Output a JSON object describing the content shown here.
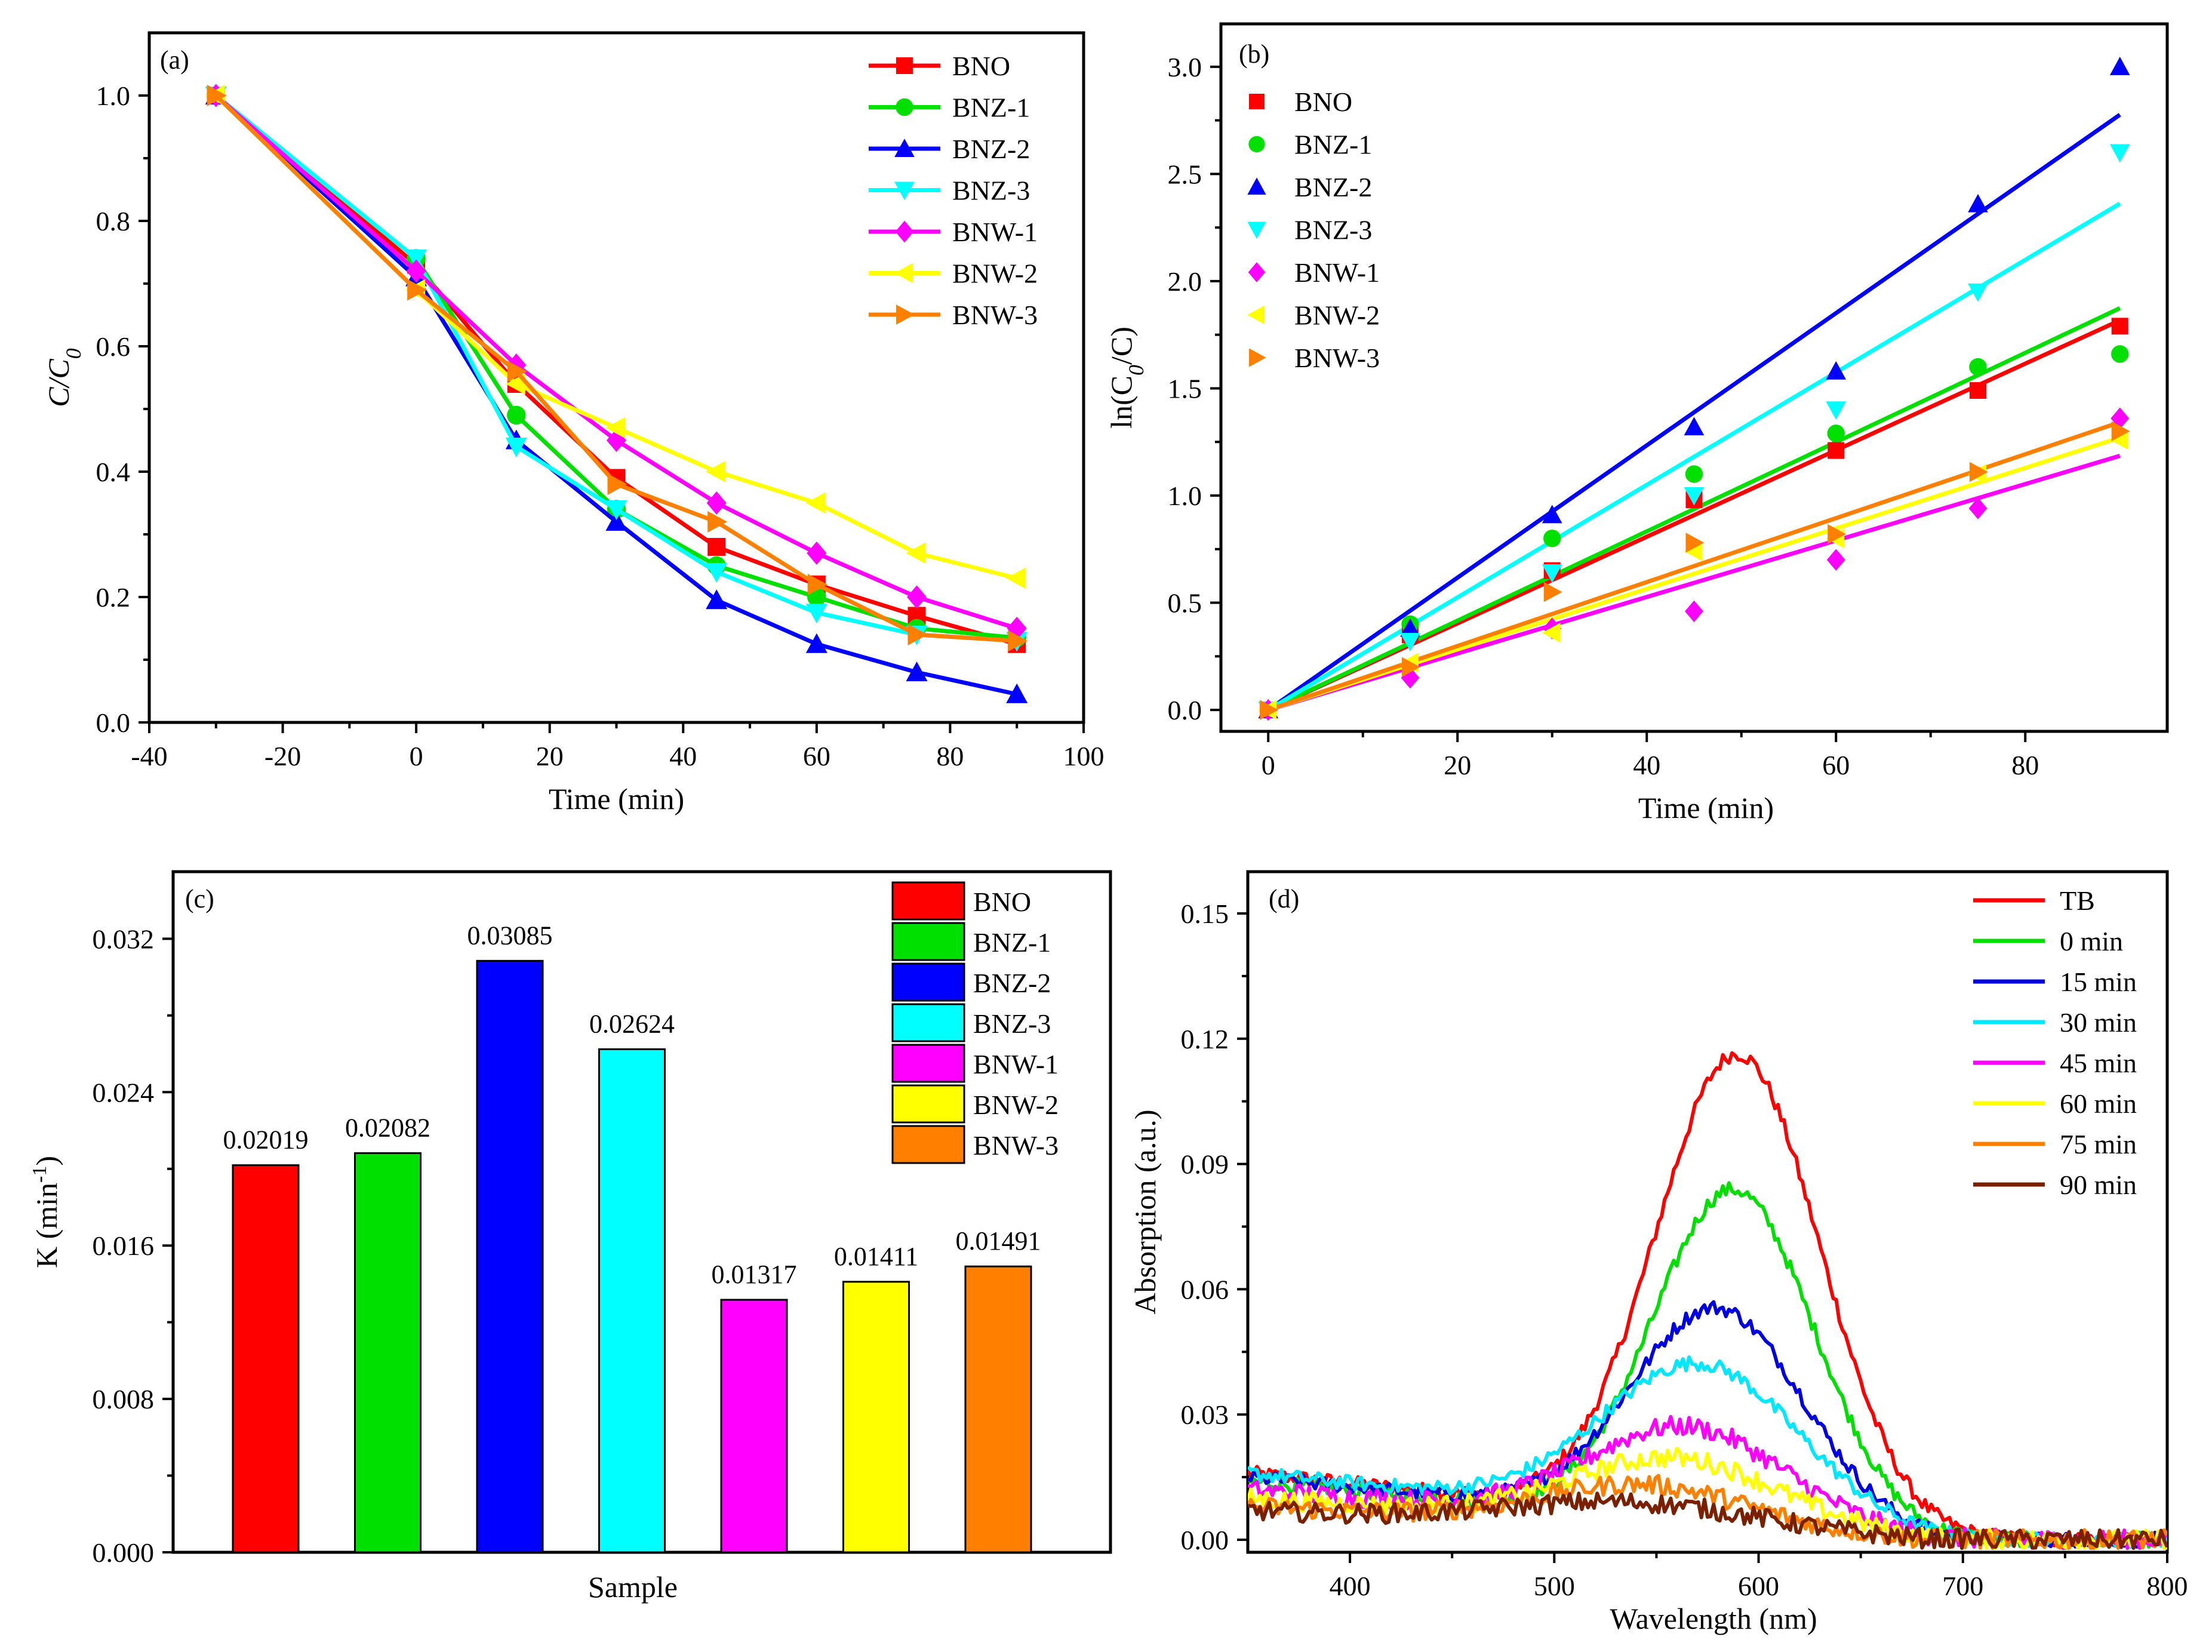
{
  "figure_colors": {
    "BNO": "#ff0000",
    "BNZ-1": "#00e000",
    "BNZ-2": "#0000ff",
    "BNZ-3": "#00ffff",
    "BNW-1": "#ff00ff",
    "BNW-2": "#ffff00",
    "BNW-3": "#ff8000"
  },
  "chart_data": [
    {
      "id": "a",
      "type": "line",
      "panel_label": "(a)",
      "title": "",
      "xlabel": "Time (min)",
      "ylabel": "C/C0",
      "ylabel_main": "C/C",
      "ylabel_sub": "0",
      "xlim": [
        -40,
        100
      ],
      "ylim": [
        0,
        1.1
      ],
      "x_ticks": [
        -40,
        -20,
        0,
        20,
        40,
        60,
        80,
        100
      ],
      "y_ticks": [
        0.0,
        0.2,
        0.4,
        0.6,
        0.8,
        1.0
      ],
      "x_tick_labels": [
        "-40",
        "-20",
        "0",
        "20",
        "40",
        "60",
        "80",
        "100"
      ],
      "y_tick_labels": [
        "0.0",
        "0.2",
        "0.4",
        "0.6",
        "0.8",
        "1.0"
      ],
      "legend_position": "top-right",
      "x": [
        -30,
        0,
        15,
        30,
        45,
        60,
        75,
        90
      ],
      "series": [
        {
          "name": "BNO",
          "marker": "square",
          "values": [
            1.0,
            0.73,
            0.54,
            0.39,
            0.28,
            0.22,
            0.17,
            0.125
          ]
        },
        {
          "name": "BNZ-1",
          "marker": "circle",
          "values": [
            1.0,
            0.74,
            0.49,
            0.34,
            0.25,
            0.2,
            0.15,
            0.135
          ]
        },
        {
          "name": "BNZ-2",
          "marker": "triangle-up",
          "values": [
            1.0,
            0.71,
            0.45,
            0.32,
            0.195,
            0.125,
            0.08,
            0.045
          ]
        },
        {
          "name": "BNZ-3",
          "marker": "triangle-down",
          "values": [
            1.0,
            0.74,
            0.44,
            0.34,
            0.24,
            0.175,
            0.14,
            0.13
          ]
        },
        {
          "name": "BNW-1",
          "marker": "diamond",
          "values": [
            1.0,
            0.72,
            0.57,
            0.45,
            0.35,
            0.27,
            0.2,
            0.15
          ]
        },
        {
          "name": "BNW-2",
          "marker": "triangle-left",
          "values": [
            1.0,
            0.69,
            0.54,
            0.47,
            0.4,
            0.35,
            0.27,
            0.23
          ]
        },
        {
          "name": "BNW-3",
          "marker": "triangle-right",
          "values": [
            1.0,
            0.69,
            0.56,
            0.38,
            0.32,
            0.22,
            0.14,
            0.13
          ]
        }
      ]
    },
    {
      "id": "b",
      "type": "scatter",
      "panel_label": "(b)",
      "title": "",
      "xlabel": "Time (min)",
      "ylabel": "ln(C0/C)",
      "ylabel_main_pre": "ln(C",
      "ylabel_sub": "0",
      "ylabel_main_post": "/C)",
      "xlim": [
        -5,
        95
      ],
      "ylim": [
        -0.1,
        3.2
      ],
      "x_ticks": [
        0,
        20,
        40,
        60,
        80
      ],
      "y_ticks": [
        0.0,
        0.5,
        1.0,
        1.5,
        2.0,
        2.5,
        3.0
      ],
      "x_tick_labels": [
        "0",
        "20",
        "40",
        "60",
        "80"
      ],
      "y_tick_labels": [
        "0.0",
        "0.5",
        "1.0",
        "1.5",
        "2.0",
        "2.5",
        "3.0"
      ],
      "legend_position": "top-left",
      "x": [
        0,
        15,
        30,
        45,
        60,
        75,
        90
      ],
      "series": [
        {
          "name": "BNO",
          "marker": "square",
          "values": [
            0.0,
            0.35,
            0.65,
            0.98,
            1.21,
            1.49,
            1.79
          ],
          "fit_slope": 0.02019
        },
        {
          "name": "BNZ-1",
          "marker": "circle",
          "values": [
            0.0,
            0.4,
            0.8,
            1.1,
            1.29,
            1.6,
            1.66
          ],
          "fit_slope": 0.02082
        },
        {
          "name": "BNZ-2",
          "marker": "triangle-up",
          "values": [
            0.0,
            0.38,
            0.91,
            1.32,
            1.58,
            2.36,
            3.0
          ],
          "fit_slope": 0.03085
        },
        {
          "name": "BNZ-3",
          "marker": "triangle-down",
          "values": [
            0.0,
            0.32,
            0.64,
            1.0,
            1.4,
            1.95,
            2.6
          ],
          "fit_slope": 0.02624
        },
        {
          "name": "BNW-1",
          "marker": "diamond",
          "values": [
            0.0,
            0.15,
            0.38,
            0.46,
            0.7,
            0.94,
            1.36
          ],
          "fit_slope": 0.01317
        },
        {
          "name": "BNW-2",
          "marker": "triangle-left",
          "values": [
            0.0,
            0.22,
            0.36,
            0.74,
            0.8,
            1.1,
            1.26
          ],
          "fit_slope": 0.01411
        },
        {
          "name": "BNW-3",
          "marker": "triangle-right",
          "values": [
            0.0,
            0.2,
            0.55,
            0.78,
            0.82,
            1.11,
            1.3
          ],
          "fit_slope": 0.01491
        }
      ]
    },
    {
      "id": "c",
      "type": "bar",
      "panel_label": "(c)",
      "title": "",
      "xlabel": "Sample",
      "ylabel": "K (min-1)",
      "ylabel_main": "K (min",
      "ylabel_sup": "-1",
      "ylabel_post": ")",
      "ylim": [
        0,
        0.0355
      ],
      "y_ticks": [
        0.0,
        0.008,
        0.016,
        0.024,
        0.032
      ],
      "y_tick_labels": [
        "0.000",
        "0.008",
        "0.016",
        "0.024",
        "0.032"
      ],
      "legend_position": "top-right",
      "categories": [
        "BNO",
        "BNZ-1",
        "BNZ-2",
        "BNZ-3",
        "BNW-1",
        "BNW-2",
        "BNW-3"
      ],
      "values": [
        0.02019,
        0.02082,
        0.03085,
        0.02624,
        0.01317,
        0.01411,
        0.01491
      ],
      "data_labels": [
        "0.02019",
        "0.02082",
        "0.03085",
        "0.02624",
        "0.01317",
        "0.01411",
        "0.01491"
      ]
    },
    {
      "id": "d",
      "type": "line",
      "panel_label": "(d)",
      "title": "",
      "xlabel": "Wavelength (nm)",
      "ylabel": "Absorption (a.u.)",
      "xlim": [
        350,
        800
      ],
      "ylim": [
        -0.003,
        0.16
      ],
      "x_ticks": [
        400,
        500,
        600,
        700,
        800
      ],
      "y_ticks": [
        0.0,
        0.03,
        0.06,
        0.09,
        0.12,
        0.15
      ],
      "x_tick_labels": [
        "400",
        "500",
        "600",
        "700",
        "800"
      ],
      "y_tick_labels": [
        "0.00",
        "0.03",
        "0.06",
        "0.09",
        "0.12",
        "0.15"
      ],
      "legend_position": "top-right",
      "series": [
        {
          "name": "TB",
          "color": "#ff0000",
          "peak_nm": 590,
          "peak": 0.112,
          "width": 40,
          "baseline": 0.016
        },
        {
          "name": "0 min",
          "color": "#00e000",
          "peak_nm": 588,
          "peak": 0.08,
          "width": 39,
          "baseline": 0.014
        },
        {
          "name": "15 min",
          "color": "#0000e0",
          "peak_nm": 580,
          "peak": 0.051,
          "width": 42,
          "baseline": 0.015
        },
        {
          "name": "30 min",
          "color": "#00e8ff",
          "peak_nm": 572,
          "peak": 0.037,
          "width": 48,
          "baseline": 0.016
        },
        {
          "name": "45 min",
          "color": "#ff00ff",
          "peak_nm": 565,
          "peak": 0.023,
          "width": 48,
          "baseline": 0.012
        },
        {
          "name": "60 min",
          "color": "#ffff00",
          "peak_nm": 560,
          "peak": 0.016,
          "width": 50,
          "baseline": 0.01
        },
        {
          "name": "75 min",
          "color": "#ff8000",
          "peak_nm": 545,
          "peak": 0.01,
          "width": 50,
          "baseline": 0.008
        },
        {
          "name": "90 min",
          "color": "#7a1f00",
          "peak_nm": 540,
          "peak": 0.006,
          "width": 60,
          "baseline": 0.007
        }
      ]
    }
  ]
}
